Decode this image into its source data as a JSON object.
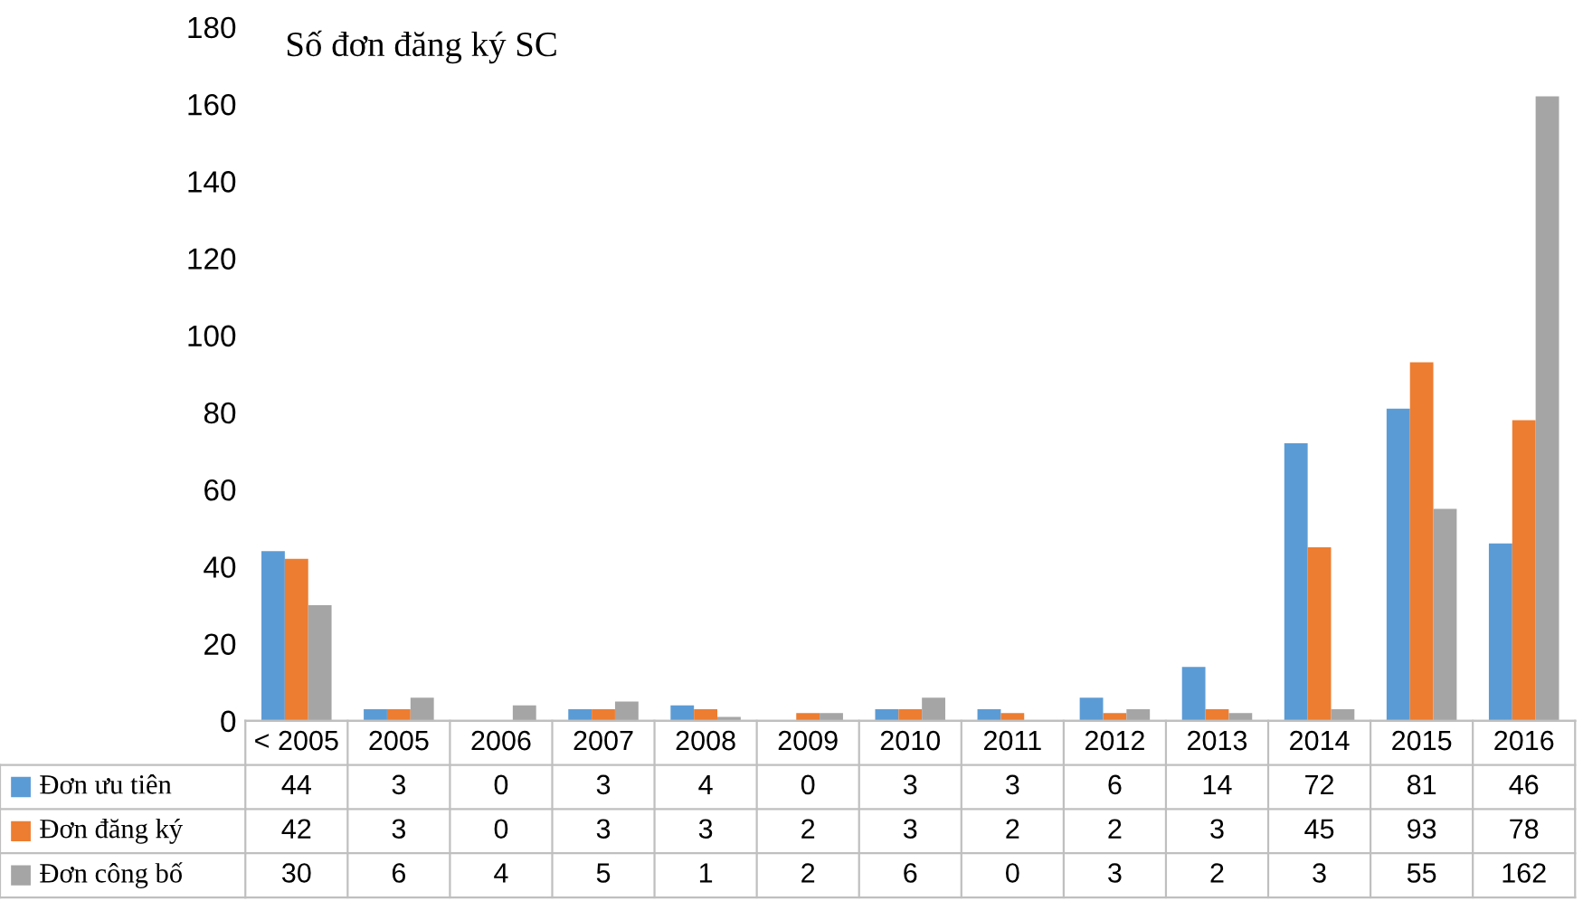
{
  "chart_data": {
    "type": "bar",
    "title": "Số đơn đăng ký SC",
    "categories": [
      "< 2005",
      "2005",
      "2006",
      "2007",
      "2008",
      "2009",
      "2010",
      "2011",
      "2012",
      "2013",
      "2014",
      "2015",
      "2016"
    ],
    "series": [
      {
        "name": "Đơn ưu tiên",
        "color": "#5b9bd5",
        "values": [
          44,
          3,
          0,
          3,
          4,
          0,
          3,
          3,
          6,
          14,
          72,
          81,
          46
        ]
      },
      {
        "name": "Đơn đăng ký",
        "color": "#ed7d31",
        "values": [
          42,
          3,
          0,
          3,
          3,
          2,
          3,
          2,
          2,
          3,
          45,
          93,
          78
        ]
      },
      {
        "name": "Đơn công bố",
        "color": "#a5a5a5",
        "values": [
          30,
          6,
          4,
          5,
          1,
          2,
          6,
          0,
          3,
          2,
          3,
          55,
          162
        ]
      }
    ],
    "ylim": [
      0,
      180
    ],
    "yticks": [
      0,
      20,
      40,
      60,
      80,
      100,
      120,
      140,
      160,
      180
    ],
    "grid": false,
    "legend": "bottom",
    "data_labels": true
  }
}
